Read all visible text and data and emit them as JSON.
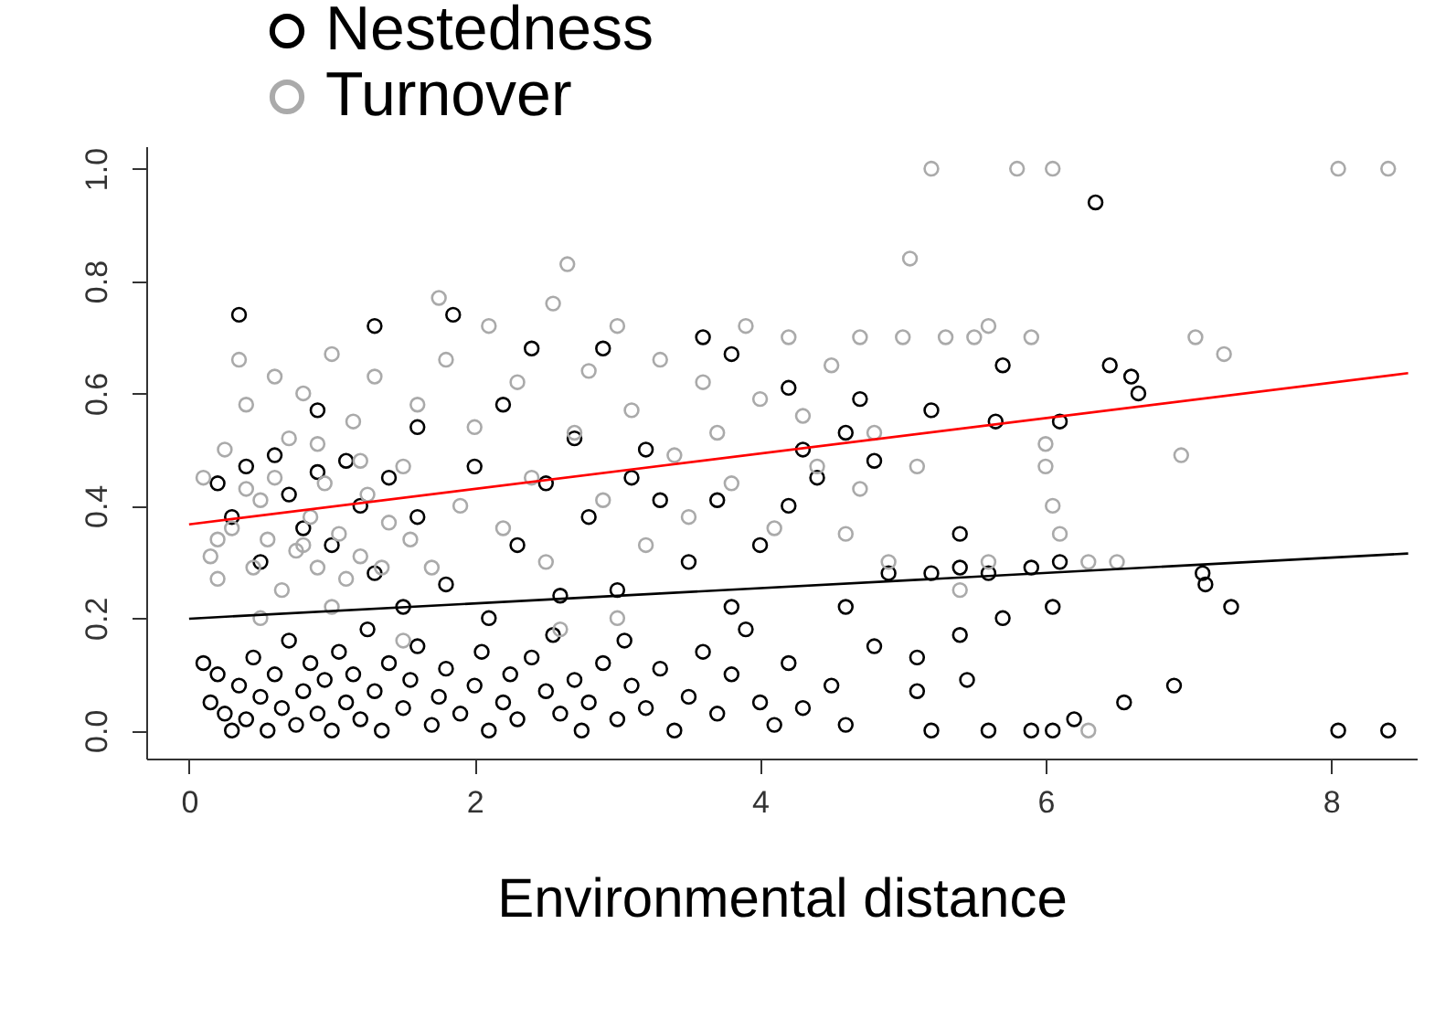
{
  "chart_data": {
    "type": "scatter",
    "xlabel": "Environmental distance",
    "xlim": [
      -0.3,
      8.6
    ],
    "xticks": [
      {
        "value": 0,
        "label": "0"
      },
      {
        "value": 2,
        "label": "2"
      },
      {
        "value": 4,
        "label": "4"
      },
      {
        "value": 6,
        "label": "6"
      },
      {
        "value": 8,
        "label": "8"
      }
    ],
    "ylim": [
      -0.05,
      1.04
    ],
    "yticks": [
      {
        "value": 0,
        "label": "0.0"
      },
      0.2,
      0.4,
      0.6,
      0.8,
      {
        "value": 1,
        "label": "1.0"
      }
    ],
    "grid": false,
    "legend": "top left",
    "series": [
      {
        "name": "Nestedness",
        "color": "#000000",
        "marker": "circle",
        "x": [
          0.1,
          0.15,
          0.2,
          0.25,
          0.3,
          0.35,
          0.4,
          0.45,
          0.5,
          0.55,
          0.6,
          0.65,
          0.7,
          0.75,
          0.8,
          0.85,
          0.9,
          0.95,
          1.0,
          1.05,
          1.1,
          1.15,
          1.2,
          1.25,
          1.3,
          1.35,
          1.4,
          1.5,
          1.55,
          1.6,
          1.7,
          1.75,
          1.8,
          1.9,
          2.0,
          2.05,
          2.1,
          2.2,
          2.25,
          2.3,
          2.4,
          2.5,
          2.55,
          2.6,
          2.7,
          2.75,
          2.8,
          2.9,
          3.0,
          3.05,
          3.1,
          3.2,
          3.3,
          3.4,
          3.5,
          3.6,
          3.7,
          3.8,
          3.9,
          4.0,
          4.1,
          4.2,
          4.3,
          4.5,
          4.6,
          4.8,
          0.2,
          0.3,
          0.4,
          0.5,
          0.6,
          0.7,
          0.8,
          0.9,
          1.0,
          1.1,
          1.2,
          1.3,
          1.4,
          1.5,
          1.6,
          1.8,
          2.0,
          2.1,
          2.3,
          2.5,
          2.6,
          2.8,
          3.0,
          3.1,
          3.3,
          3.5,
          3.7,
          3.8,
          4.0,
          4.2,
          4.4,
          4.6,
          4.8,
          4.9,
          5.2,
          5.4,
          5.6,
          5.9,
          6.1,
          5.4,
          5.4,
          5.7,
          6.05,
          5.1,
          5.1,
          5.45,
          0.35,
          1.3,
          1.85,
          2.4,
          0.9,
          2.9,
          3.6,
          3.8,
          2.2,
          4.2,
          4.7,
          5.2,
          5.65,
          5.7,
          6.1,
          6.35,
          6.45,
          6.6,
          6.65,
          4.6,
          3.2,
          2.7,
          1.6,
          4.3,
          6.2,
          6.55,
          6.9,
          7.1,
          7.12,
          7.3,
          8.05,
          8.4,
          5.2,
          5.6,
          5.9,
          6.05
        ],
        "values": [
          0.12,
          0.05,
          0.1,
          0.03,
          0.0,
          0.08,
          0.02,
          0.13,
          0.06,
          0.0,
          0.1,
          0.04,
          0.16,
          0.01,
          0.07,
          0.12,
          0.03,
          0.09,
          0.0,
          0.14,
          0.05,
          0.1,
          0.02,
          0.18,
          0.07,
          0.0,
          0.12,
          0.04,
          0.09,
          0.15,
          0.01,
          0.06,
          0.11,
          0.03,
          0.08,
          0.14,
          0.0,
          0.05,
          0.1,
          0.02,
          0.13,
          0.07,
          0.17,
          0.03,
          0.09,
          0.0,
          0.05,
          0.12,
          0.02,
          0.16,
          0.08,
          0.04,
          0.11,
          0.0,
          0.06,
          0.14,
          0.03,
          0.1,
          0.18,
          0.05,
          0.01,
          0.12,
          0.04,
          0.08,
          0.01,
          0.15,
          0.44,
          0.38,
          0.47,
          0.3,
          0.49,
          0.42,
          0.36,
          0.46,
          0.33,
          0.48,
          0.4,
          0.28,
          0.45,
          0.22,
          0.38,
          0.26,
          0.47,
          0.2,
          0.33,
          0.44,
          0.24,
          0.38,
          0.25,
          0.45,
          0.41,
          0.3,
          0.41,
          0.22,
          0.33,
          0.4,
          0.45,
          0.22,
          0.48,
          0.28,
          0.28,
          0.29,
          0.28,
          0.29,
          0.3,
          0.35,
          0.17,
          0.2,
          0.22,
          0.13,
          0.07,
          0.09,
          0.74,
          0.72,
          0.74,
          0.68,
          0.57,
          0.68,
          0.7,
          0.67,
          0.58,
          0.61,
          0.59,
          0.57,
          0.55,
          0.65,
          0.55,
          0.94,
          0.65,
          0.63,
          0.6,
          0.53,
          0.5,
          0.52,
          0.54,
          0.5,
          0.02,
          0.05,
          0.08,
          0.28,
          0.26,
          0.22,
          0.0,
          0.0,
          0.0,
          0.0,
          0.0,
          0.0
        ]
      },
      {
        "name": "Turnover",
        "color": "#aaaaaa",
        "marker": "circle",
        "x": [
          0.1,
          0.15,
          0.2,
          0.25,
          0.3,
          0.35,
          0.4,
          0.45,
          0.5,
          0.55,
          0.6,
          0.65,
          0.7,
          0.75,
          0.8,
          0.85,
          0.9,
          0.95,
          1.0,
          1.05,
          1.1,
          1.15,
          1.2,
          1.25,
          1.3,
          1.35,
          1.4,
          1.5,
          1.55,
          1.6,
          1.7,
          1.75,
          1.8,
          1.9,
          2.0,
          2.1,
          2.2,
          2.3,
          2.4,
          2.5,
          2.55,
          2.65,
          2.7,
          2.8,
          2.9,
          3.0,
          3.1,
          3.2,
          3.3,
          3.4,
          3.5,
          3.6,
          3.7,
          3.8,
          3.9,
          4.0,
          4.1,
          4.2,
          4.3,
          4.4,
          4.5,
          4.6,
          4.7,
          4.8,
          4.9,
          5.0,
          5.05,
          5.2,
          5.3,
          5.5,
          5.6,
          5.8,
          6.05,
          5.9,
          6.0,
          6.0,
          6.05,
          6.1,
          6.3,
          6.5,
          6.95,
          7.05,
          7.25,
          8.05,
          8.4,
          4.7,
          5.1,
          5.4,
          5.6,
          6.3,
          3.0,
          2.6,
          1.0,
          0.5,
          1.5,
          0.2,
          0.6,
          0.9,
          1.2,
          0.4,
          0.8
        ],
        "values": [
          0.45,
          0.31,
          0.27,
          0.5,
          0.36,
          0.66,
          0.58,
          0.29,
          0.41,
          0.34,
          0.63,
          0.25,
          0.52,
          0.32,
          0.6,
          0.38,
          0.29,
          0.44,
          0.67,
          0.35,
          0.27,
          0.55,
          0.31,
          0.42,
          0.63,
          0.29,
          0.37,
          0.47,
          0.34,
          0.58,
          0.29,
          0.77,
          0.66,
          0.4,
          0.54,
          0.72,
          0.36,
          0.62,
          0.45,
          0.3,
          0.76,
          0.83,
          0.53,
          0.64,
          0.41,
          0.72,
          0.57,
          0.33,
          0.66,
          0.49,
          0.38,
          0.62,
          0.53,
          0.44,
          0.72,
          0.59,
          0.36,
          0.7,
          0.56,
          0.47,
          0.65,
          0.35,
          0.7,
          0.53,
          0.3,
          0.7,
          0.84,
          1.0,
          0.7,
          0.7,
          0.72,
          1.0,
          1.0,
          0.7,
          0.51,
          0.47,
          0.4,
          0.35,
          0.3,
          0.3,
          0.49,
          0.7,
          0.67,
          1.0,
          1.0,
          0.43,
          0.47,
          0.25,
          0.3,
          0.0,
          0.2,
          0.18,
          0.22,
          0.2,
          0.16,
          0.34,
          0.45,
          0.51,
          0.48,
          0.43,
          0.33
        ]
      },
      {
        "type": "line",
        "color": "#ff0000",
        "x": [
          0,
          8.54
        ],
        "values": [
          0.367,
          0.636
        ]
      },
      {
        "type": "line",
        "color": "#000000",
        "x": [
          0,
          8.54
        ],
        "values": [
          0.199,
          0.315
        ]
      }
    ]
  }
}
